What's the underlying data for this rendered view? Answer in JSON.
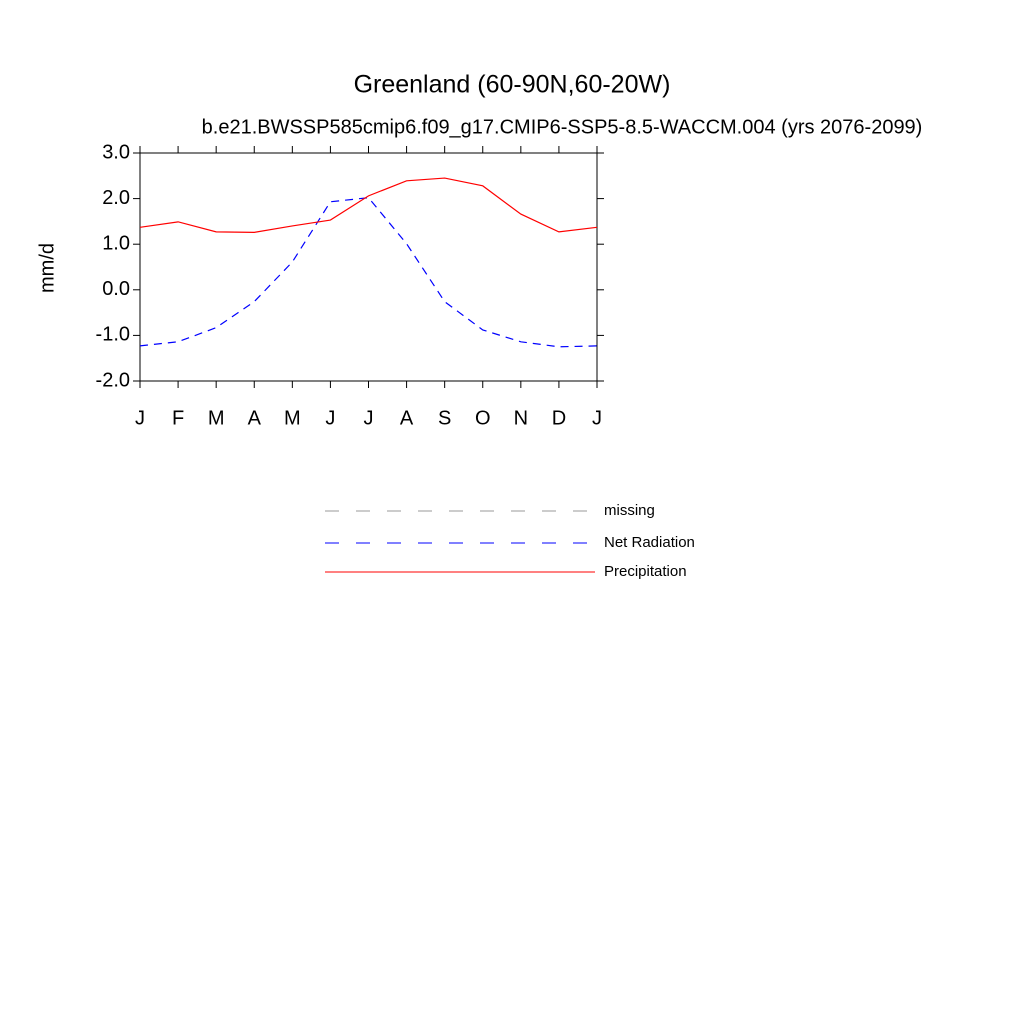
{
  "chart_data": {
    "type": "line",
    "title": "Greenland (60-90N,60-20W)",
    "subtitle": "b.e21.BWSSP585cmip6.f09_g17.CMIP6-SSP5-8.5-WACCM.004 (yrs 2076-2099)",
    "y_label": "mm/d",
    "categories": [
      "J",
      "F",
      "M",
      "A",
      "M",
      "J",
      "J",
      "A",
      "S",
      "O",
      "N",
      "D",
      "J"
    ],
    "ylim": [
      -2,
      3
    ],
    "yticks": [
      {
        "value": -2,
        "label": "-2.0"
      },
      {
        "value": -1,
        "label": "-1.0"
      },
      {
        "value": 0,
        "label": "0.0"
      },
      {
        "value": 1,
        "label": "1.0"
      },
      {
        "value": 2,
        "label": "2.0"
      },
      {
        "value": 3,
        "label": "3.0"
      }
    ],
    "series": [
      {
        "name": "missing",
        "color": "#999999",
        "dash": true,
        "values": [
          null,
          null,
          null,
          null,
          null,
          null,
          null,
          null,
          null,
          null,
          null,
          null,
          null
        ]
      },
      {
        "name": "Net Radiation",
        "color": "#0000ff",
        "dash": true,
        "values": [
          -1.23,
          -1.14,
          -0.83,
          -0.26,
          0.61,
          1.93,
          2.02,
          1.01,
          -0.26,
          -0.88,
          -1.14,
          -1.25,
          -1.23
        ]
      },
      {
        "name": "Precipitation",
        "color": "#ff0000",
        "dash": false,
        "values": [
          1.37,
          1.49,
          1.27,
          1.26,
          1.4,
          1.53,
          2.06,
          2.39,
          2.45,
          2.28,
          1.66,
          1.27,
          1.37
        ]
      }
    ]
  }
}
